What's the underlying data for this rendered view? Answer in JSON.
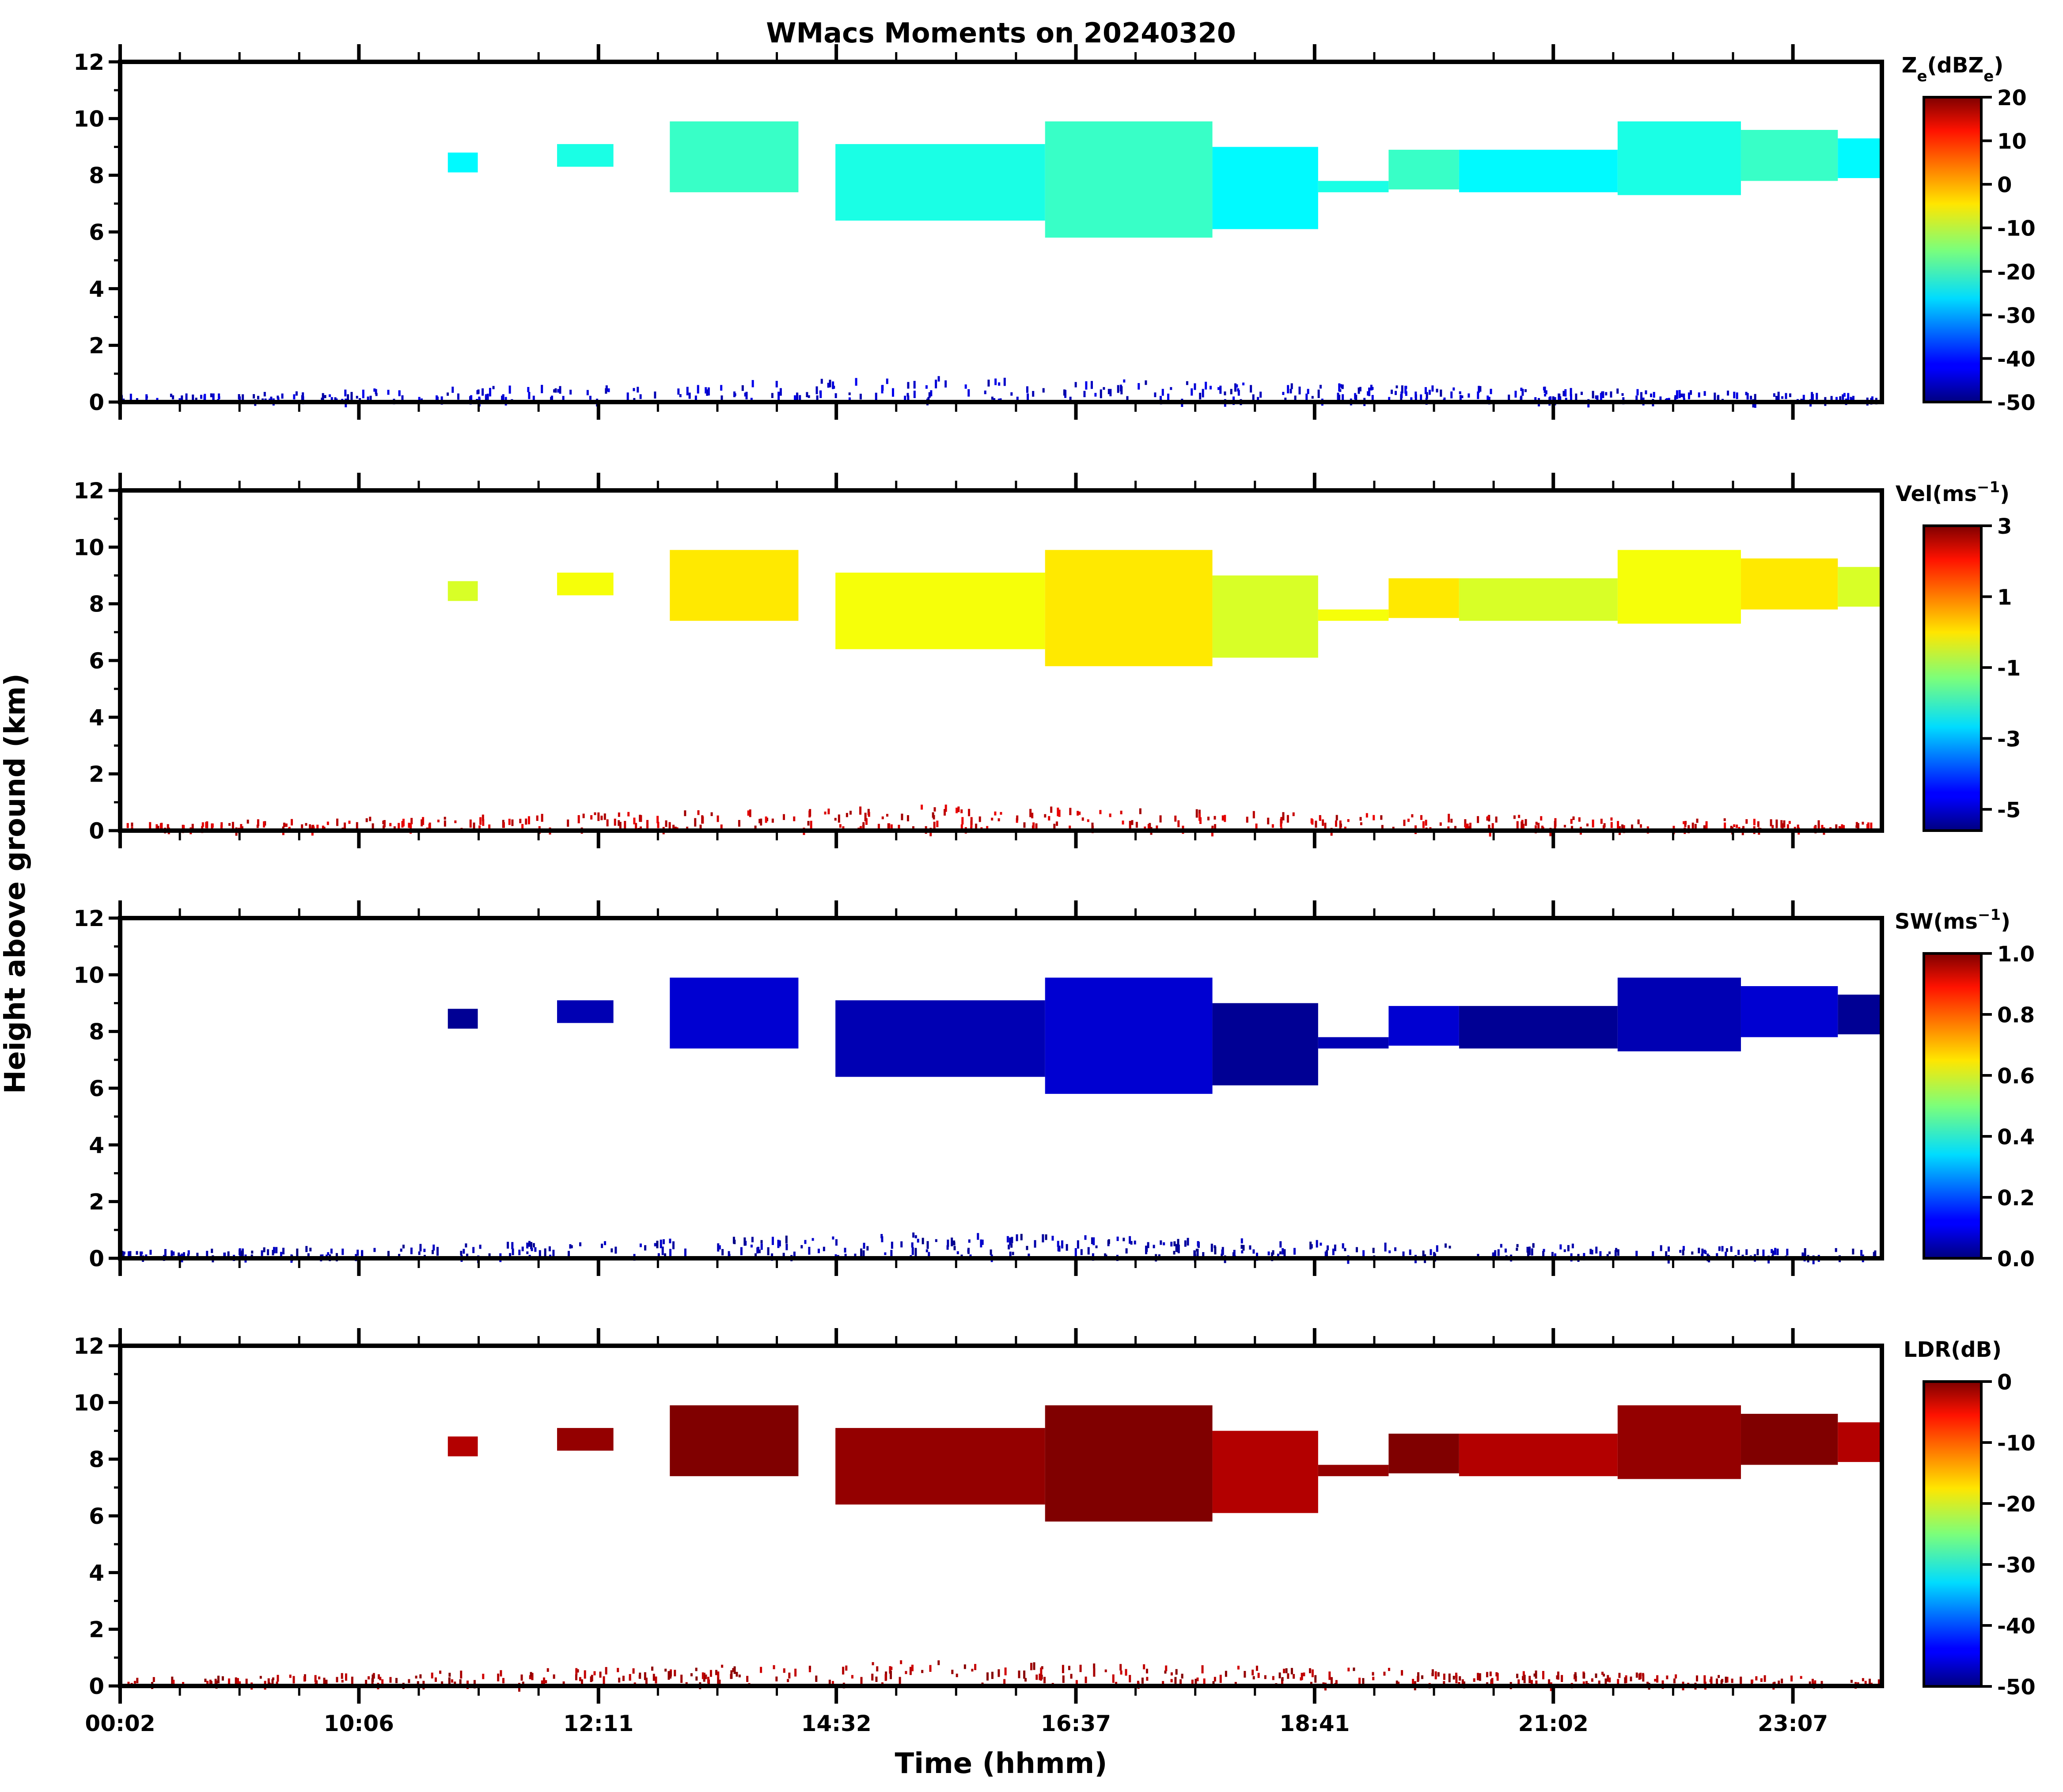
{
  "chart_data": {
    "type": "heatmap",
    "title": "WMacs Moments on 20240320",
    "xlabel": "Time (hhmm)",
    "ylabel": "Height above ground (km)",
    "x_tick_labels": [
      "00:02",
      "10:06",
      "12:11",
      "14:32",
      "16:37",
      "18:41",
      "21:02",
      "23:07"
    ],
    "y_ticks": [
      0,
      2,
      4,
      6,
      8,
      10,
      12
    ],
    "ylim": [
      0,
      12
    ],
    "panels": [
      {
        "key": "ze",
        "colorbar_label_main": "Z",
        "colorbar_label_sub": "e",
        "colorbar_label_unit_open": "(dBZ",
        "colorbar_label_unit_sub": "e",
        "colorbar_label_unit_close": ")",
        "cbar_ticks": [
          "20",
          "10",
          "0",
          "-10",
          "-20",
          "-30",
          "-40",
          "-50"
        ],
        "vmin": -50,
        "vmax": 20,
        "cloud_value": -22,
        "base_value": -45
      },
      {
        "key": "vel",
        "colorbar_label_main": "Vel(ms",
        "colorbar_label_sup": "−1",
        "colorbar_label_close": ")",
        "cbar_ticks": [
          "3",
          "1",
          "-1",
          "-3",
          "-5"
        ],
        "vmin": -5.6,
        "vmax": 3.0,
        "cloud_value": -0.3,
        "base_value": 2.4
      },
      {
        "key": "sw",
        "colorbar_label_main": "SW(ms",
        "colorbar_label_sup": "−1",
        "colorbar_label_close": ")",
        "cbar_ticks": [
          "1.0",
          "0.8",
          "0.6",
          "0.4",
          "0.2",
          "0.0"
        ],
        "vmin": 0.0,
        "vmax": 1.0,
        "cloud_value": 0.05,
        "base_value": 0.04
      },
      {
        "key": "ldr",
        "colorbar_label_main": "LDR(dB)",
        "cbar_ticks": [
          "0",
          "-10",
          "-20",
          "-30",
          "-40",
          "-50"
        ],
        "vmin": -50,
        "vmax": 0,
        "cloud_value": -1,
        "base_value": -2
      }
    ],
    "cloud_layer_km": [
      {
        "t_start": 0.186,
        "t_end": 0.203,
        "base": 8.1,
        "top": 8.8
      },
      {
        "t_start": 0.248,
        "t_end": 0.28,
        "base": 8.3,
        "top": 9.1
      },
      {
        "t_start": 0.312,
        "t_end": 0.385,
        "base": 7.4,
        "top": 9.9
      },
      {
        "t_start": 0.408,
        "t_end": 0.435,
        "base": 6.6,
        "top": 6.8
      },
      {
        "t_start": 0.406,
        "t_end": 0.525,
        "base": 6.4,
        "top": 9.1
      },
      {
        "t_start": 0.525,
        "t_end": 0.62,
        "base": 5.8,
        "top": 9.9
      },
      {
        "t_start": 0.62,
        "t_end": 0.68,
        "base": 6.1,
        "top": 9.0
      },
      {
        "t_start": 0.68,
        "t_end": 0.72,
        "base": 7.4,
        "top": 7.8
      },
      {
        "t_start": 0.72,
        "t_end": 0.76,
        "base": 7.5,
        "top": 8.9
      },
      {
        "t_start": 0.76,
        "t_end": 0.85,
        "base": 7.4,
        "top": 8.9
      },
      {
        "t_start": 0.85,
        "t_end": 0.92,
        "base": 7.3,
        "top": 9.9
      },
      {
        "t_start": 0.92,
        "t_end": 0.975,
        "base": 7.8,
        "top": 9.6
      },
      {
        "t_start": 0.975,
        "t_end": 1.0,
        "base": 7.9,
        "top": 9.3
      }
    ]
  }
}
